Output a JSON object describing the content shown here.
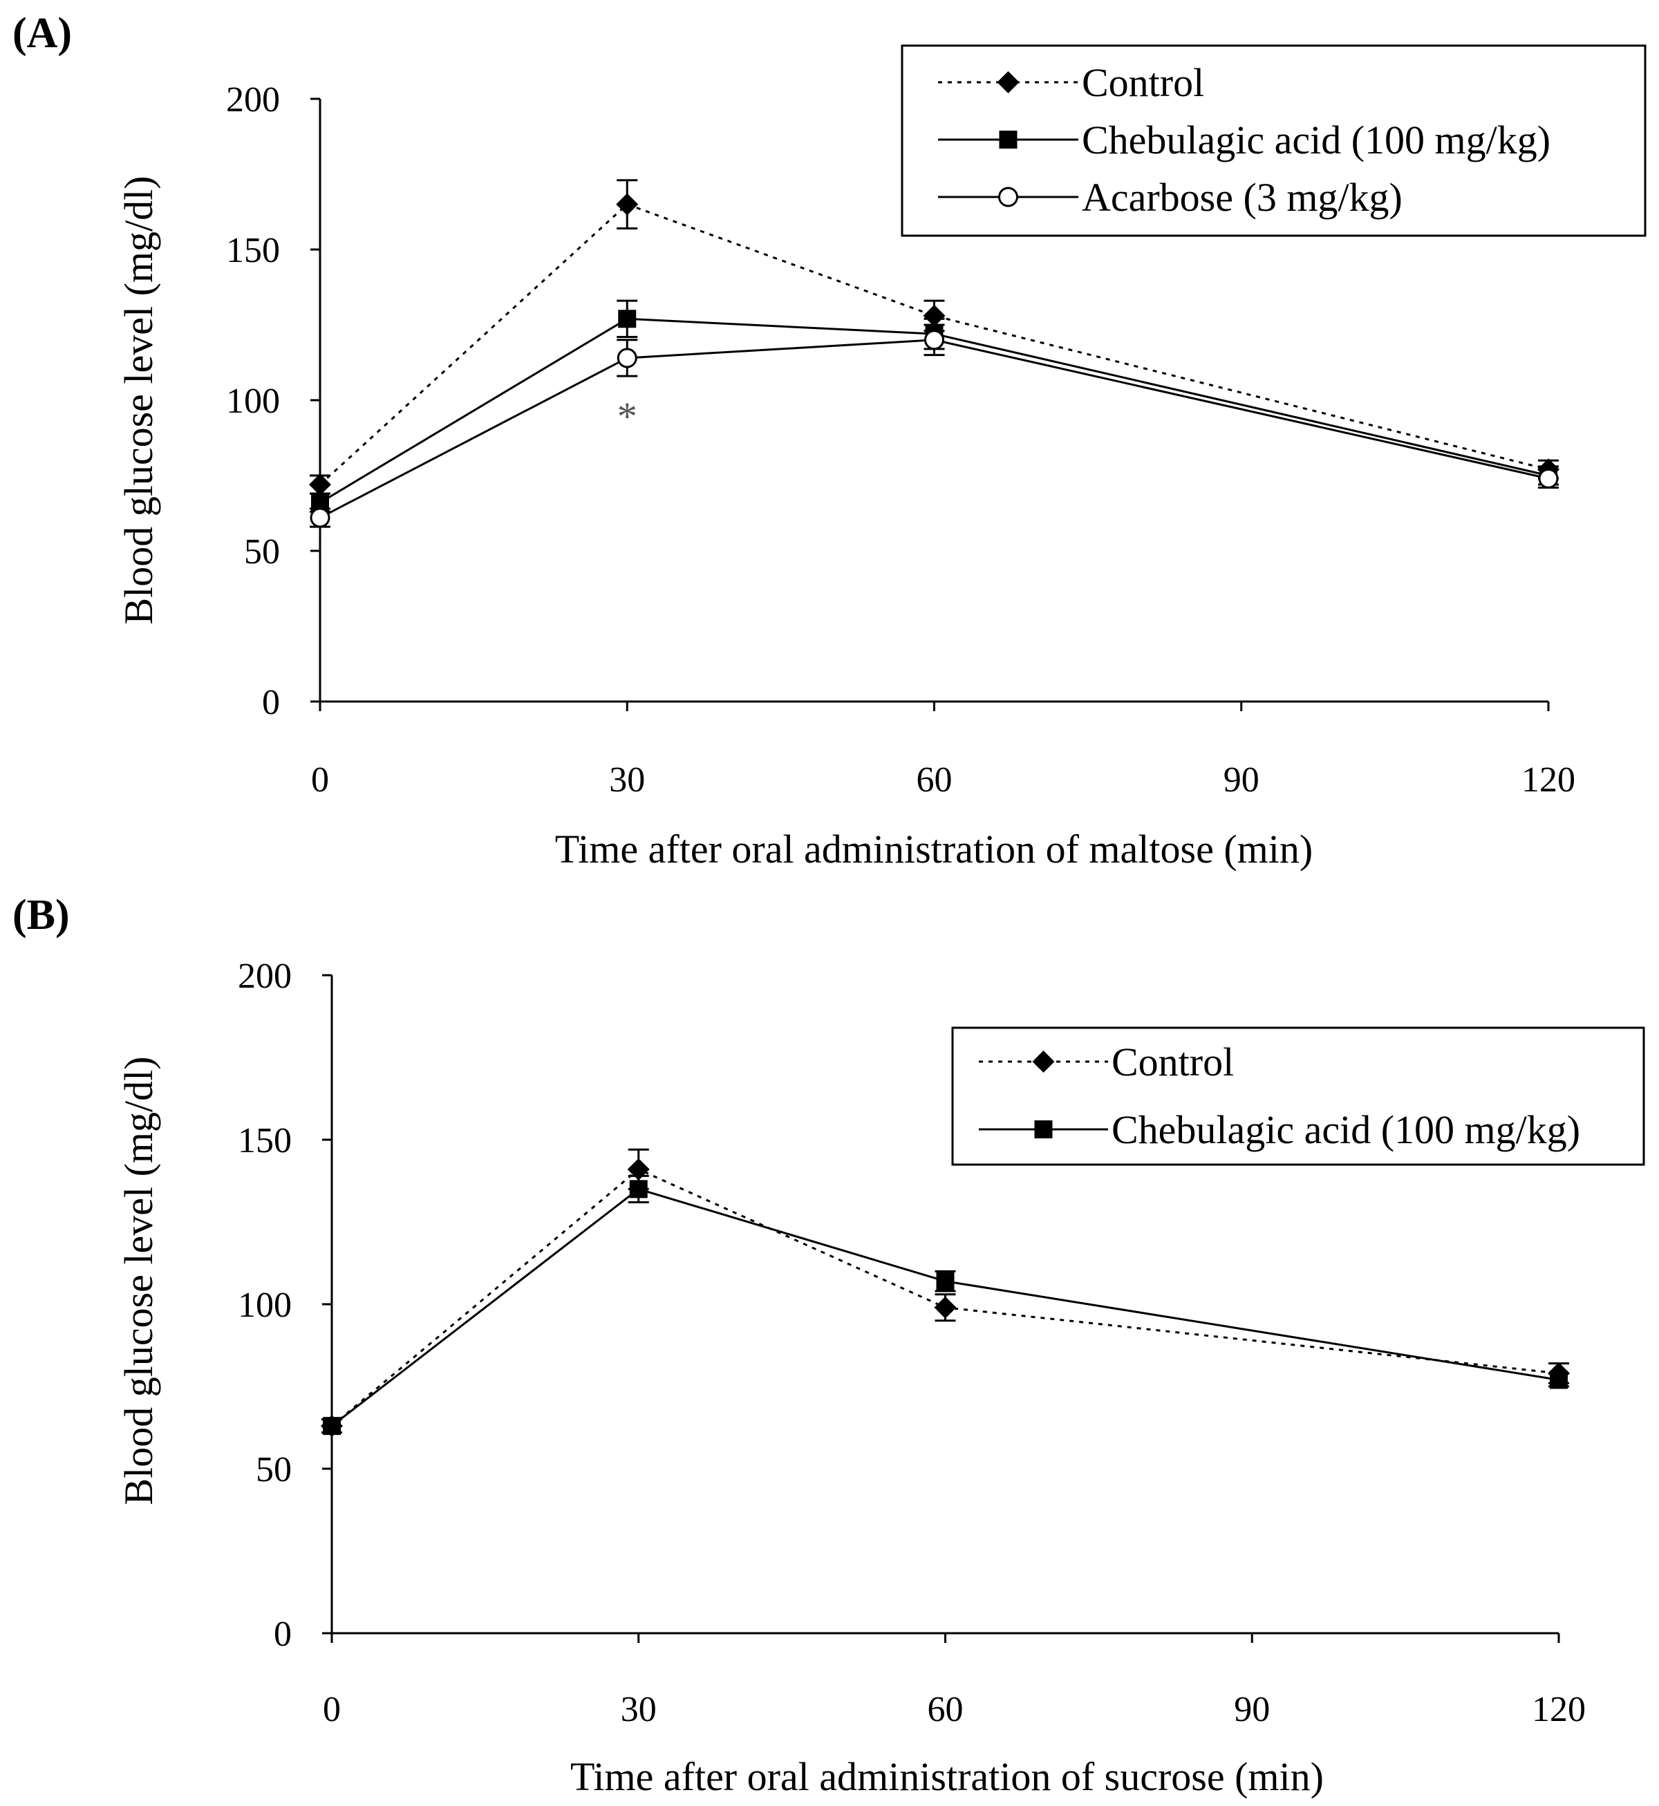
{
  "chart_data": [
    {
      "type": "line",
      "panel_label": "(A)",
      "title": "",
      "xlabel": "Time after oral administration of maltose (min)",
      "ylabel": "Blood glucose level (mg/dl)",
      "xlim": [
        0,
        120
      ],
      "ylim": [
        0,
        200
      ],
      "xticks": [
        0,
        30,
        60,
        90,
        120
      ],
      "yticks": [
        0,
        50,
        100,
        150,
        200
      ],
      "grid": false,
      "legend_position": "top-right",
      "x": [
        0,
        30,
        60,
        120
      ],
      "series": [
        {
          "name": "Control",
          "marker": "diamond",
          "line": "dotted",
          "values": [
            72,
            165,
            128,
            77
          ],
          "errors": [
            3,
            8,
            5,
            3
          ]
        },
        {
          "name": "Chebulagic acid (100 mg/kg)",
          "marker": "square",
          "line": "solid",
          "values": [
            66,
            127,
            122,
            75
          ],
          "errors": [
            3,
            6,
            5,
            3
          ]
        },
        {
          "name": "Acarbose (3 mg/kg)",
          "marker": "circle-open",
          "line": "solid",
          "values": [
            61,
            114,
            120,
            74
          ],
          "errors": [
            3,
            6,
            5,
            3
          ]
        }
      ],
      "annotations": [
        {
          "text": "*",
          "x": 30,
          "y": 97
        }
      ]
    },
    {
      "type": "line",
      "panel_label": "(B)",
      "title": "",
      "xlabel": "Time after oral administration of sucrose (min)",
      "ylabel": "Blood glucose level (mg/dl)",
      "xlim": [
        0,
        120
      ],
      "ylim": [
        0,
        200
      ],
      "xticks": [
        0,
        30,
        60,
        90,
        120
      ],
      "yticks": [
        0,
        50,
        100,
        150,
        200
      ],
      "grid": false,
      "legend_position": "top-right",
      "x": [
        0,
        30,
        60,
        120
      ],
      "series": [
        {
          "name": "Control",
          "marker": "diamond",
          "line": "dotted",
          "values": [
            63,
            141,
            99,
            79
          ],
          "errors": [
            2,
            6,
            4,
            3
          ]
        },
        {
          "name": "Chebulagic acid (100 mg/kg)",
          "marker": "square",
          "line": "solid",
          "values": [
            63,
            135,
            107,
            77
          ],
          "errors": [
            2,
            4,
            3,
            2
          ]
        }
      ],
      "annotations": []
    }
  ]
}
